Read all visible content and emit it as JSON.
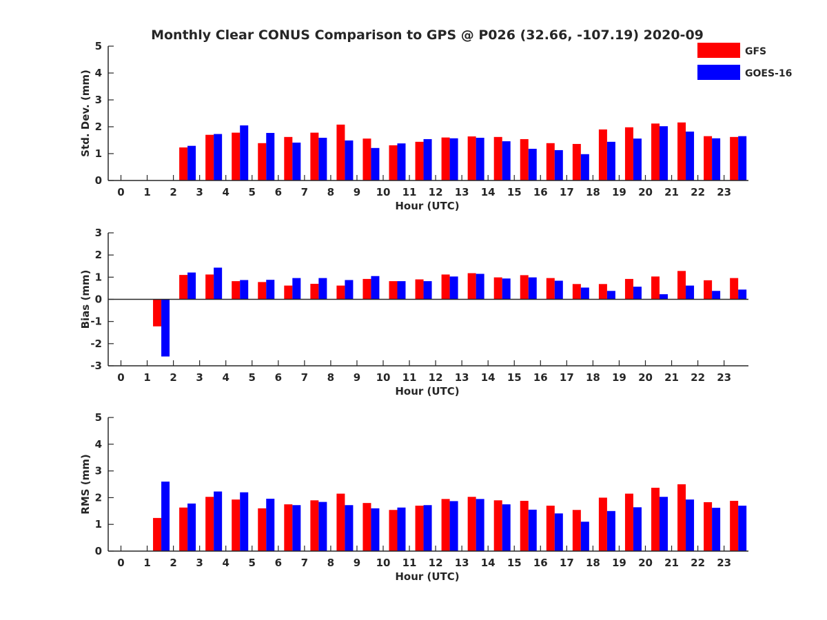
{
  "title": "Monthly Clear CONUS Comparison to GPS @ P026 (32.66, -107.19) 2020-09",
  "legend": {
    "placement": "top-right",
    "entries": [
      {
        "name": "GFS",
        "color": "#ff0000"
      },
      {
        "name": "GOES-16",
        "color": "#0000ff"
      }
    ]
  },
  "chart_data": [
    {
      "type": "bar",
      "xlabel": "Hour (UTC)",
      "ylabel": "Std. Dev. (mm)",
      "ylim": [
        0,
        5
      ],
      "yticks": [
        0,
        1,
        2,
        3,
        4,
        5
      ],
      "categories": [
        "0",
        "1",
        "2",
        "3",
        "4",
        "5",
        "6",
        "7",
        "8",
        "9",
        "10",
        "11",
        "12",
        "13",
        "14",
        "15",
        "16",
        "17",
        "18",
        "19",
        "20",
        "21",
        "22",
        "23"
      ],
      "series": [
        {
          "name": "GFS",
          "color": "#ff0000",
          "values": [
            null,
            null,
            1.23,
            1.7,
            1.78,
            1.39,
            1.62,
            1.78,
            2.08,
            1.56,
            1.31,
            1.44,
            1.6,
            1.64,
            1.62,
            1.54,
            1.39,
            1.36,
            1.9,
            1.98,
            2.12,
            2.16,
            1.65,
            1.62
          ]
        },
        {
          "name": "GOES-16",
          "color": "#0000ff",
          "values": [
            null,
            null,
            1.29,
            1.73,
            2.05,
            1.77,
            1.41,
            1.59,
            1.49,
            1.21,
            1.38,
            1.54,
            1.57,
            1.59,
            1.46,
            1.18,
            1.13,
            0.98,
            1.44,
            1.56,
            2.02,
            1.82,
            1.57,
            1.65
          ]
        }
      ]
    },
    {
      "type": "bar",
      "xlabel": "Hour (UTC)",
      "ylabel": "Bias (mm)",
      "ylim": [
        -3,
        3
      ],
      "yticks": [
        -3,
        -2,
        -1,
        0,
        1,
        2,
        3
      ],
      "categories": [
        "0",
        "1",
        "2",
        "3",
        "4",
        "5",
        "6",
        "7",
        "8",
        "9",
        "10",
        "11",
        "12",
        "13",
        "14",
        "15",
        "16",
        "17",
        "18",
        "19",
        "20",
        "21",
        "22",
        "23"
      ],
      "series": [
        {
          "name": "GFS",
          "color": "#ff0000",
          "values": [
            null,
            -1.22,
            1.1,
            1.12,
            0.82,
            0.78,
            0.62,
            0.7,
            0.62,
            0.92,
            0.82,
            0.9,
            1.12,
            1.18,
            0.99,
            1.09,
            0.96,
            0.69,
            0.69,
            0.92,
            1.03,
            1.28,
            0.86,
            0.96
          ]
        },
        {
          "name": "GOES-16",
          "color": "#0000ff",
          "values": [
            null,
            -2.58,
            1.21,
            1.43,
            0.87,
            0.88,
            0.96,
            0.96,
            0.87,
            1.05,
            0.82,
            0.82,
            1.03,
            1.15,
            0.94,
            0.99,
            0.84,
            0.53,
            0.38,
            0.57,
            0.23,
            0.62,
            0.38,
            0.44
          ]
        }
      ]
    },
    {
      "type": "bar",
      "xlabel": "Hour (UTC)",
      "ylabel": "RMS (mm)",
      "ylim": [
        0,
        5
      ],
      "yticks": [
        0,
        1,
        2,
        3,
        4,
        5
      ],
      "categories": [
        "0",
        "1",
        "2",
        "3",
        "4",
        "5",
        "6",
        "7",
        "8",
        "9",
        "10",
        "11",
        "12",
        "13",
        "14",
        "15",
        "16",
        "17",
        "18",
        "19",
        "20",
        "21",
        "22",
        "23"
      ],
      "series": [
        {
          "name": "GFS",
          "color": "#ff0000",
          "values": [
            null,
            1.24,
            1.63,
            2.03,
            1.93,
            1.6,
            1.75,
            1.9,
            2.15,
            1.8,
            1.54,
            1.7,
            1.95,
            2.03,
            1.9,
            1.88,
            1.7,
            1.54,
            2.0,
            2.15,
            2.37,
            2.5,
            1.83,
            1.88
          ]
        },
        {
          "name": "GOES-16",
          "color": "#0000ff",
          "values": [
            null,
            2.6,
            1.78,
            2.23,
            2.2,
            1.96,
            1.72,
            1.84,
            1.72,
            1.6,
            1.63,
            1.72,
            1.87,
            1.95,
            1.75,
            1.55,
            1.41,
            1.1,
            1.5,
            1.64,
            2.03,
            1.93,
            1.62,
            1.7
          ]
        }
      ]
    }
  ]
}
